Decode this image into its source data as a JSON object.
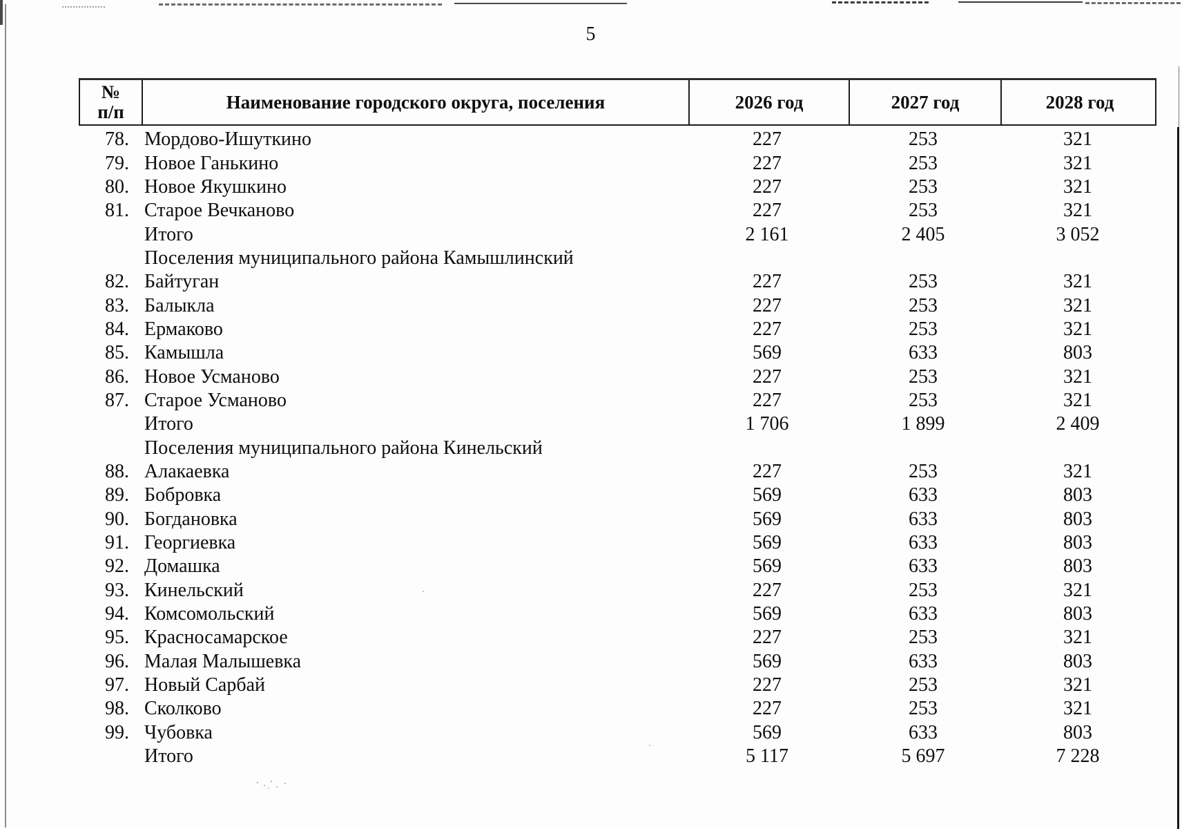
{
  "page": {
    "number": "5"
  },
  "table": {
    "header": {
      "num_line1": "№",
      "num_line2": "п/п",
      "name": "Наименование городского округа, поселения",
      "y2026": "2026 год",
      "y2027": "2027 год",
      "y2028": "2028 год"
    },
    "rows": [
      {
        "num": "78.",
        "name": "Мордово-Ишуткино",
        "y2026": "227",
        "y2027": "253",
        "y2028": "321"
      },
      {
        "num": "79.",
        "name": "Новое Ганькино",
        "y2026": "227",
        "y2027": "253",
        "y2028": "321"
      },
      {
        "num": "80.",
        "name": "Новое Якушкино",
        "y2026": "227",
        "y2027": "253",
        "y2028": "321"
      },
      {
        "num": "81.",
        "name": "Старое Вечканово",
        "y2026": "227",
        "y2027": "253",
        "y2028": "321"
      },
      {
        "num": "",
        "name": "Итого",
        "y2026": "2 161",
        "y2027": "2 405",
        "y2028": "3 052"
      },
      {
        "num": "",
        "name": "Поселения муниципального района Камышлинский",
        "y2026": "",
        "y2027": "",
        "y2028": ""
      },
      {
        "num": "82.",
        "name": "Байтуган",
        "y2026": "227",
        "y2027": "253",
        "y2028": "321"
      },
      {
        "num": "83.",
        "name": "Балыкла",
        "y2026": "227",
        "y2027": "253",
        "y2028": "321"
      },
      {
        "num": "84.",
        "name": "Ермаково",
        "y2026": "227",
        "y2027": "253",
        "y2028": "321"
      },
      {
        "num": "85.",
        "name": "Камышла",
        "y2026": "569",
        "y2027": "633",
        "y2028": "803"
      },
      {
        "num": "86.",
        "name": "Новое Усманово",
        "y2026": "227",
        "y2027": "253",
        "y2028": "321"
      },
      {
        "num": "87.",
        "name": "Старое Усманово",
        "y2026": "227",
        "y2027": "253",
        "y2028": "321"
      },
      {
        "num": "",
        "name": "Итого",
        "y2026": "1 706",
        "y2027": "1 899",
        "y2028": "2 409"
      },
      {
        "num": "",
        "name": "Поселения муниципального района Кинельский",
        "y2026": "",
        "y2027": "",
        "y2028": ""
      },
      {
        "num": "88.",
        "name": "Алакаевка",
        "y2026": "227",
        "y2027": "253",
        "y2028": "321"
      },
      {
        "num": "89.",
        "name": "Бобровка",
        "y2026": "569",
        "y2027": "633",
        "y2028": "803"
      },
      {
        "num": "90.",
        "name": "Богдановка",
        "y2026": "569",
        "y2027": "633",
        "y2028": "803"
      },
      {
        "num": "91.",
        "name": "Георгиевка",
        "y2026": "569",
        "y2027": "633",
        "y2028": "803"
      },
      {
        "num": "92.",
        "name": "Домашка",
        "y2026": "569",
        "y2027": "633",
        "y2028": "803"
      },
      {
        "num": "93.",
        "name": "Кинельский",
        "y2026": "227",
        "y2027": "253",
        "y2028": "321"
      },
      {
        "num": "94.",
        "name": "Комсомольский",
        "y2026": "569",
        "y2027": "633",
        "y2028": "803"
      },
      {
        "num": "95.",
        "name": "Красносамарское",
        "y2026": "227",
        "y2027": "253",
        "y2028": "321"
      },
      {
        "num": "96.",
        "name": "Малая Малышевка",
        "y2026": "569",
        "y2027": "633",
        "y2028": "803"
      },
      {
        "num": "97.",
        "name": "Новый Сарбай",
        "y2026": "227",
        "y2027": "253",
        "y2028": "321"
      },
      {
        "num": "98.",
        "name": "Сколково",
        "y2026": "227",
        "y2027": "253",
        "y2028": "321"
      },
      {
        "num": "99.",
        "name": "Чубовка",
        "y2026": "569",
        "y2027": "633",
        "y2028": "803"
      },
      {
        "num": "",
        "name": "Итого",
        "y2026": "5 117",
        "y2027": "5 697",
        "y2028": "7 228"
      }
    ]
  }
}
